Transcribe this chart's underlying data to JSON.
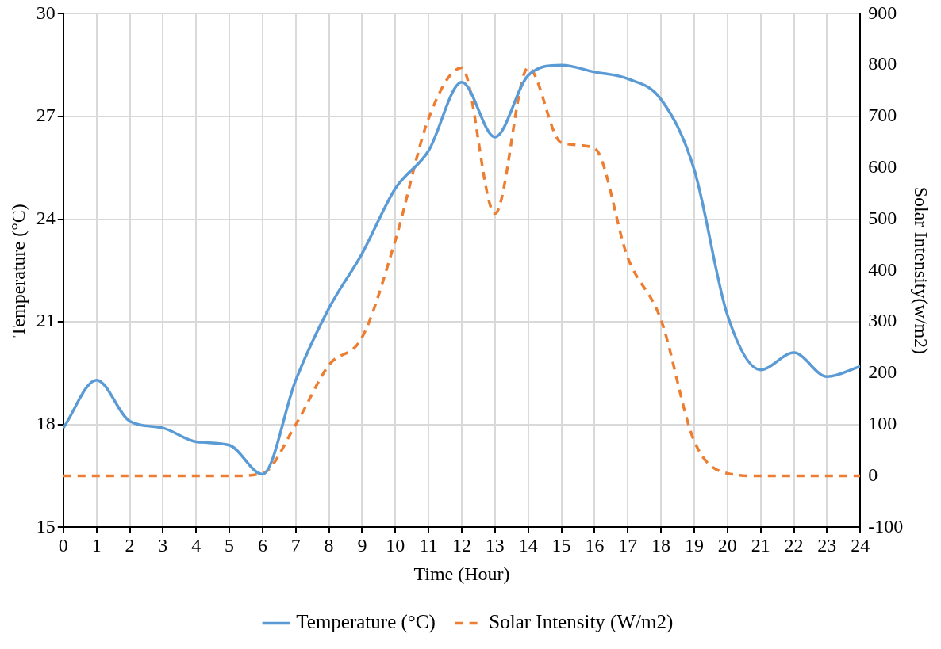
{
  "chart_data": {
    "type": "line",
    "xlabel": "Time (Hour)",
    "ylabel": "Temperature (°C)",
    "y2label": "Solar Intensity(w/m2)",
    "x": [
      0,
      1,
      2,
      3,
      4,
      5,
      6,
      7,
      8,
      9,
      10,
      11,
      12,
      13,
      14,
      15,
      16,
      17,
      18,
      19,
      20,
      21,
      22,
      23,
      24
    ],
    "series": [
      {
        "name": "Temperature (°C)",
        "color": "#5b9bd5",
        "line_style": "solid",
        "values": [
          17.9,
          19.3,
          18.1,
          17.9,
          17.5,
          17.4,
          16.55,
          19.3,
          21.4,
          23.0,
          24.9,
          26.0,
          28.0,
          26.4,
          28.2,
          28.5,
          28.3,
          28.1,
          27.5,
          25.45,
          21.2,
          19.6,
          20.1,
          19.4,
          19.7
        ]
      },
      {
        "name": "Solar Intensity (W/m2)",
        "color": "#ed7d31",
        "line_style": "dashed",
        "axis": "y2",
        "values": [
          0,
          0,
          0,
          0,
          0,
          0,
          5,
          100,
          216,
          270,
          459,
          696,
          795,
          511,
          795,
          649,
          638,
          425,
          304,
          68,
          5,
          0,
          0,
          0,
          0
        ]
      }
    ],
    "xlim": [
      0,
      24
    ],
    "xticks": [
      0,
      1,
      2,
      3,
      4,
      5,
      6,
      7,
      8,
      9,
      10,
      11,
      12,
      13,
      14,
      15,
      16,
      17,
      18,
      19,
      20,
      21,
      22,
      23,
      24
    ],
    "ylim": [
      15,
      30
    ],
    "yticks": [
      15,
      18,
      21,
      24,
      27,
      30
    ],
    "y2lim": [
      -100,
      900
    ],
    "y2ticks": [
      -100,
      0,
      100,
      200,
      300,
      400,
      500,
      600,
      700,
      800,
      900
    ],
    "grid": true,
    "legend": "bottom",
    "marker": "none"
  }
}
